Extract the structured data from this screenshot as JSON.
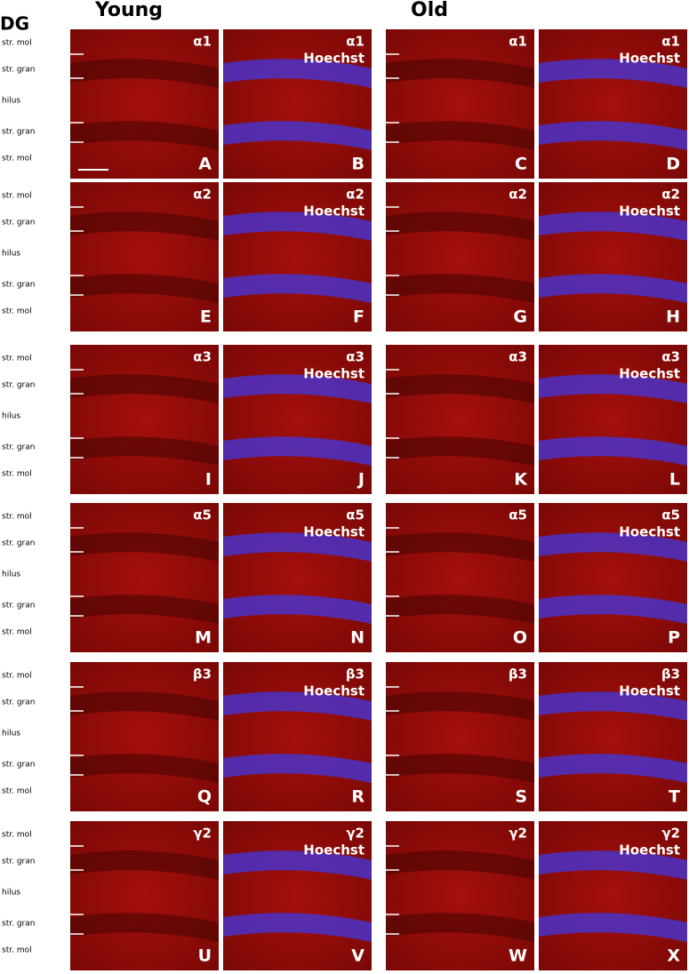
{
  "header": {
    "region": "DG",
    "groups": [
      "Young",
      "Old"
    ],
    "stain": "Hoechst"
  },
  "rows": [
    {
      "subunit": "α1",
      "layers": [
        "str. mol",
        "str. gran",
        "hilus",
        "str. gran",
        "str. mol"
      ],
      "letters": [
        "A",
        "B",
        "C",
        "D"
      ]
    },
    {
      "subunit": "α2",
      "layers": [
        "str. mol",
        "str. gran",
        "hilus",
        "str. gran",
        "str. mol"
      ],
      "letters": [
        "E",
        "F",
        "G",
        "H"
      ]
    },
    {
      "subunit": "α3",
      "layers": [
        "str. mol",
        "str. gran",
        "hilus",
        "str. gran",
        "str. mol"
      ],
      "letters": [
        "I",
        "J",
        "K",
        "L"
      ]
    },
    {
      "subunit": "α5",
      "layers": [
        "str. mol",
        "str. gran",
        "hilus",
        "str. gran",
        "str. mol"
      ],
      "letters": [
        "M",
        "N",
        "O",
        "P"
      ]
    },
    {
      "subunit": "β3",
      "layers": [
        "str. mol",
        "str. gran",
        "hilus",
        "str. gran",
        "str. mol"
      ],
      "letters": [
        "Q",
        "R",
        "S",
        "T"
      ]
    },
    {
      "subunit": "γ2",
      "layers": [
        "str. mol",
        "str. gran",
        "hilus",
        "str. gran",
        "str. mol"
      ],
      "letters": [
        "U",
        "V",
        "W",
        "X"
      ]
    }
  ]
}
